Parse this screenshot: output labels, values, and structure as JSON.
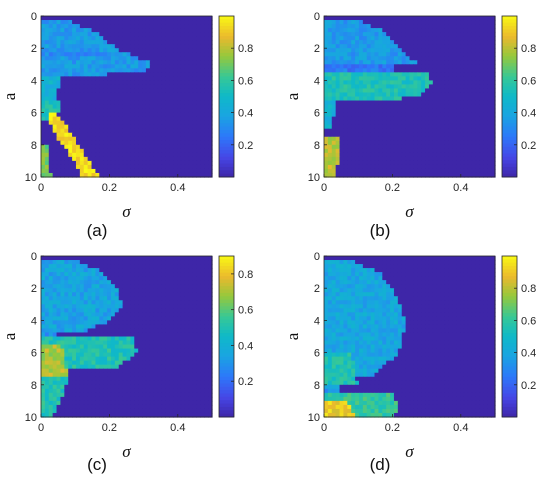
{
  "chart_data": [
    {
      "type": "heatmap",
      "caption": "(a)",
      "xlabel": "σ",
      "ylabel": "a",
      "xlim": [
        0,
        0.5
      ],
      "ylim": [
        0,
        10
      ],
      "y_direction": "down",
      "xticks": [
        "0",
        "0.2",
        "0.4"
      ],
      "yticks": [
        "0",
        "2",
        "4",
        "6",
        "8",
        "10"
      ],
      "colorbar": {
        "range": [
          0,
          1
        ],
        "ticks": [
          "0.2",
          "0.4",
          "0.6",
          "0.8"
        ]
      },
      "colormap": "parula",
      "background_value": 0.0,
      "regions": [
        {
          "a": [
            0.3,
            3.8
          ],
          "sigma_max_at_a": [
            [
              0.3,
              0.08
            ],
            [
              1.0,
              0.16
            ],
            [
              2.0,
              0.22
            ],
            [
              2.6,
              0.28
            ],
            [
              3.0,
              0.33
            ],
            [
              3.4,
              0.31
            ],
            [
              3.8,
              0.1
            ]
          ],
          "value": 0.35
        },
        {
          "a": [
            2.2,
            2.5
          ],
          "sigma_max_at_a": [
            [
              2.2,
              0.2
            ],
            [
              2.5,
              0.2
            ]
          ],
          "value": 0.3
        },
        {
          "a": [
            3.8,
            5.2
          ],
          "sigma_max_at_a": [
            [
              3.8,
              0.06
            ],
            [
              5.2,
              0.04
            ]
          ],
          "value": 0.45
        },
        {
          "a": [
            5.2,
            6.6
          ],
          "sigma_max_at_a": [
            [
              5.2,
              0.06
            ],
            [
              6.0,
              0.05
            ],
            [
              6.6,
              0.04
            ]
          ],
          "value": 0.55
        },
        {
          "a": [
            6.0,
            10.0
          ],
          "band_sigma_at_a": [
            [
              6.0,
              0.02,
              0.04
            ],
            [
              7.0,
              0.03,
              0.08
            ],
            [
              8.0,
              0.06,
              0.11
            ],
            [
              9.0,
              0.1,
              0.14
            ],
            [
              10.0,
              0.12,
              0.17
            ]
          ],
          "value": 0.95
        },
        {
          "a": [
            8.0,
            10.0
          ],
          "sigma_max_at_a": [
            [
              8.0,
              0.02
            ],
            [
              10.0,
              0.03
            ]
          ],
          "value": 0.7
        }
      ]
    },
    {
      "type": "heatmap",
      "caption": "(b)",
      "xlabel": "σ",
      "ylabel": "a",
      "xlim": [
        0,
        0.5
      ],
      "ylim": [
        0,
        10
      ],
      "y_direction": "down",
      "xticks": [
        "0",
        "0.2",
        "0.4"
      ],
      "yticks": [
        "0",
        "2",
        "4",
        "6",
        "8",
        "10"
      ],
      "colorbar": {
        "range": [
          0,
          1
        ],
        "ticks": [
          "0.2",
          "0.4",
          "0.6",
          "0.8"
        ]
      },
      "colormap": "parula",
      "background_value": 0.0,
      "regions": [
        {
          "a": [
            0.3,
            3.1
          ],
          "sigma_max_at_a": [
            [
              0.3,
              0.1
            ],
            [
              1.0,
              0.18
            ],
            [
              2.0,
              0.22
            ],
            [
              2.8,
              0.26
            ],
            [
              3.1,
              0.3
            ]
          ],
          "value": 0.35
        },
        {
          "a": [
            3.1,
            3.4
          ],
          "sigma_max_at_a": [
            [
              3.1,
              0.2
            ],
            [
              3.4,
              0.2
            ]
          ],
          "value": 0.25
        },
        {
          "a": [
            3.4,
            5.3
          ],
          "sigma_max_at_a": [
            [
              3.4,
              0.3
            ],
            [
              4.2,
              0.32
            ],
            [
              5.0,
              0.28
            ],
            [
              5.3,
              0.15
            ]
          ],
          "value": 0.55
        },
        {
          "a": [
            5.3,
            7.0
          ],
          "sigma_max_at_a": [
            [
              5.3,
              0.04
            ],
            [
              6.2,
              0.03
            ],
            [
              7.0,
              0.02
            ]
          ],
          "value": 0.45
        },
        {
          "a": [
            7.5,
            10.0
          ],
          "sigma_max_at_a": [
            [
              7.5,
              0.04
            ],
            [
              8.5,
              0.05
            ],
            [
              10.0,
              0.03
            ]
          ],
          "value": 0.8
        }
      ]
    },
    {
      "type": "heatmap",
      "caption": "(c)",
      "xlabel": "σ",
      "ylabel": "a",
      "xlim": [
        0,
        0.5
      ],
      "ylim": [
        0,
        10
      ],
      "y_direction": "down",
      "xticks": [
        "0",
        "0.2",
        "0.4"
      ],
      "yticks": [
        "0",
        "2",
        "4",
        "6",
        "8",
        "10"
      ],
      "colorbar": {
        "range": [
          0,
          0.9
        ],
        "ticks": [
          "0.2",
          "0.4",
          "0.6",
          "0.8"
        ]
      },
      "colormap": "parula",
      "background_value": 0.0,
      "regions": [
        {
          "a": [
            0.3,
            4.8
          ],
          "sigma_max_at_a": [
            [
              0.3,
              0.1
            ],
            [
              1.0,
              0.18
            ],
            [
              2.0,
              0.22
            ],
            [
              3.0,
              0.24
            ],
            [
              4.0,
              0.2
            ],
            [
              4.8,
              0.12
            ]
          ],
          "value": 0.35
        },
        {
          "a": [
            4.8,
            5.1
          ],
          "sigma_max_at_a": [
            [
              4.8,
              0.04
            ],
            [
              5.1,
              0.04
            ]
          ],
          "value": 0.3
        },
        {
          "a": [
            5.1,
            7.0
          ],
          "sigma_max_at_a": [
            [
              5.1,
              0.27
            ],
            [
              6.0,
              0.28
            ],
            [
              7.0,
              0.22
            ]
          ],
          "value": 0.5
        },
        {
          "a": [
            5.5,
            7.5
          ],
          "sigma_max_at_a": [
            [
              5.5,
              0.06
            ],
            [
              7.5,
              0.08
            ]
          ],
          "value": 0.7
        },
        {
          "a": [
            7.5,
            10.0
          ],
          "sigma_max_at_a": [
            [
              7.5,
              0.08
            ],
            [
              9.0,
              0.06
            ],
            [
              10.0,
              0.03
            ]
          ],
          "value": 0.5
        }
      ]
    },
    {
      "type": "heatmap",
      "caption": "(d)",
      "xlabel": "σ",
      "ylabel": "a",
      "xlim": [
        0,
        0.5
      ],
      "ylim": [
        0,
        10
      ],
      "y_direction": "down",
      "xticks": [
        "0",
        "0.2",
        "0.4"
      ],
      "yticks": [
        "0",
        "2",
        "4",
        "6",
        "8",
        "10"
      ],
      "colorbar": {
        "range": [
          0,
          1
        ],
        "ticks": [
          "0.2",
          "0.4",
          "0.6",
          "0.8"
        ]
      },
      "colormap": "parula",
      "background_value": 0.0,
      "regions": [
        {
          "a": [
            0.3,
            7.5
          ],
          "sigma_max_at_a": [
            [
              0.3,
              0.08
            ],
            [
              1.0,
              0.16
            ],
            [
              2.0,
              0.2
            ],
            [
              4.0,
              0.24
            ],
            [
              6.0,
              0.22
            ],
            [
              7.5,
              0.14
            ]
          ],
          "value": 0.4
        },
        {
          "a": [
            6.0,
            8.0
          ],
          "sigma_max_at_a": [
            [
              6.0,
              0.08
            ],
            [
              8.0,
              0.1
            ]
          ],
          "value": 0.55
        },
        {
          "a": [
            8.0,
            8.6
          ],
          "sigma_max_at_a": [
            [
              8.0,
              0.04
            ],
            [
              8.6,
              0.04
            ]
          ],
          "value": 0.35
        },
        {
          "a": [
            8.6,
            10.0
          ],
          "sigma_max_at_a": [
            [
              8.6,
              0.2
            ],
            [
              9.3,
              0.22
            ],
            [
              10.0,
              0.2
            ]
          ],
          "value": 0.6
        },
        {
          "a": [
            9.0,
            10.0
          ],
          "sigma_max_at_a": [
            [
              9.0,
              0.06
            ],
            [
              10.0,
              0.1
            ]
          ],
          "value": 0.9
        }
      ]
    }
  ]
}
